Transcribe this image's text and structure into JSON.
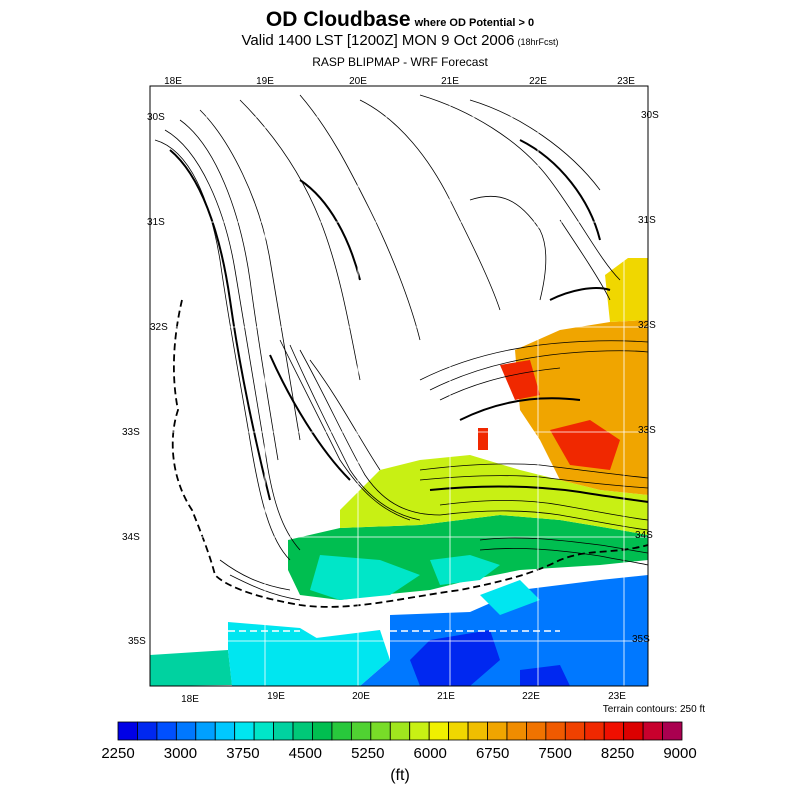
{
  "title": {
    "main": "OD Cloudbase",
    "condition": "where OD Potential > 0"
  },
  "subtitle": {
    "valid": "Valid 1400 LST [1200Z] MON 9 Oct 2006",
    "forecast": "(18hrFcst)"
  },
  "source": "RASP BLIPMAP - WRF Forecast",
  "axes": {
    "top_lon_labels": [
      "18E",
      "19E",
      "20E",
      "21E",
      "22E",
      "23E"
    ],
    "bottom_lon_labels": [
      "18E",
      "19E",
      "20E",
      "21E",
      "22E",
      "23E"
    ],
    "left_lat_labels": [
      "30S",
      "31S",
      "32S",
      "33S",
      "34S",
      "35S"
    ],
    "right_lat_labels": [
      "30S",
      "31S",
      "32S",
      "33S",
      "34S",
      "35S"
    ]
  },
  "terrain_note": "Terrain contours: 250 ft",
  "colorbar": {
    "unit": "(ft)",
    "tick_labels": [
      "2250",
      "3000",
      "3750",
      "4500",
      "5250",
      "6000",
      "6750",
      "7500",
      "8250",
      "9000"
    ],
    "colors": [
      "#0000e6",
      "#0028f0",
      "#0050ff",
      "#0078ff",
      "#00a0ff",
      "#00c8ff",
      "#00e6f0",
      "#00e6c8",
      "#00d2a0",
      "#00c878",
      "#00be50",
      "#28c83c",
      "#50d232",
      "#78dc28",
      "#a0e61e",
      "#c8f014",
      "#f0f000",
      "#f0d700",
      "#f0be00",
      "#f0a500",
      "#f08c00",
      "#f07300",
      "#f05a00",
      "#f04100",
      "#f02800",
      "#f00f00",
      "#dc0000",
      "#c8002d",
      "#aa0050"
    ],
    "min": 2250,
    "max": 9000
  },
  "regions": [
    {
      "id": "southwest-ocean-low",
      "color": "#00d2a0"
    },
    {
      "id": "south-cyan-band",
      "color": "#00e6f0"
    },
    {
      "id": "south-mid-blue",
      "color": "#0078ff"
    },
    {
      "id": "south-deep-blue",
      "color": "#0028f0"
    },
    {
      "id": "coastal-green-belt",
      "color": "#00be50"
    },
    {
      "id": "teal-interior",
      "color": "#00e6c8"
    },
    {
      "id": "yellow-band",
      "color": "#c8f014"
    },
    {
      "id": "orange-east",
      "color": "#f0a500"
    },
    {
      "id": "red-core",
      "color": "#f02800"
    },
    {
      "id": "northeast-yellow",
      "color": "#f0d700"
    }
  ]
}
